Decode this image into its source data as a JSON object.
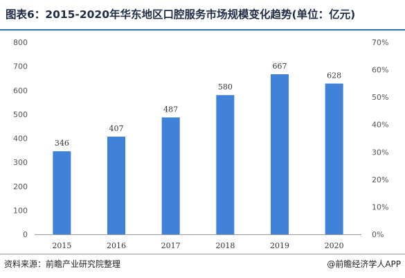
{
  "title": "图表6：2015-2020年华东地区口腔服务市场规模变化趋势(单位：亿元)",
  "source": "资料来源：前瞻产业研究院整理",
  "credit": "@前瞻经济学人APP",
  "colors": {
    "bar": "#3f82d8",
    "axis": "#999999",
    "title_rule": "#2f6fb5"
  },
  "chart_data": {
    "type": "bar",
    "categories": [
      "2015",
      "2016",
      "2017",
      "2018",
      "2019",
      "2020"
    ],
    "values": [
      346,
      407,
      487,
      580,
      667,
      628
    ],
    "data_labels": [
      "346",
      "407",
      "487",
      "580",
      "667",
      "628"
    ],
    "ylim": [
      0,
      800
    ],
    "yticks": [
      "0",
      "100",
      "200",
      "300",
      "400",
      "500",
      "600",
      "700",
      "800"
    ],
    "y2lim": [
      0,
      70
    ],
    "y2ticks": [
      "0%",
      "10%",
      "20%",
      "30%",
      "40%",
      "50%",
      "60%",
      "70%"
    ],
    "grid": false,
    "xlabel": "",
    "ylabel": ""
  }
}
